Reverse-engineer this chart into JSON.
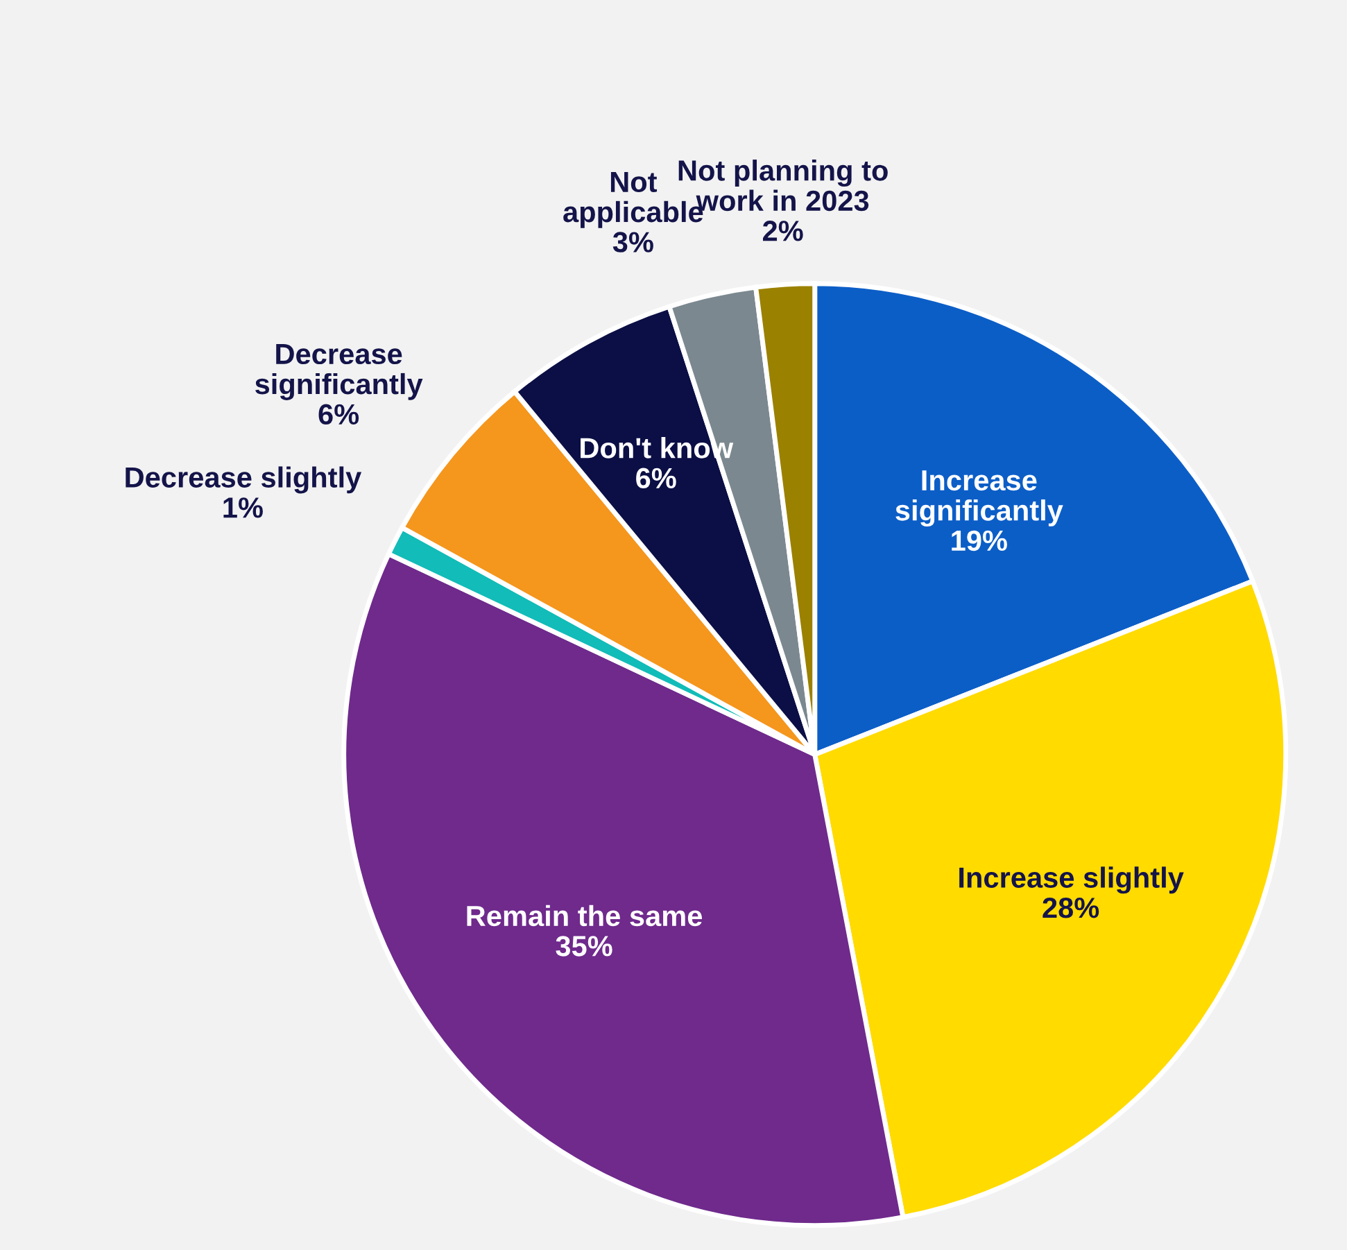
{
  "chart_data": {
    "type": "pie",
    "categories": [
      "Increase\nsignificantly",
      "Increase slightly",
      "Remain the same",
      "Decrease slightly",
      "Decrease\nsignificantly",
      "Don't know",
      "Not\napplicable",
      "Not planning to\nwork in 2023"
    ],
    "values": [
      19,
      28,
      35,
      1,
      6,
      6,
      3,
      2
    ],
    "colors": [
      "#0c5ec7",
      "#ffdb00",
      "#6f2a8c",
      "#12bcb8",
      "#f5961d",
      "#0b0f45",
      "#7b8890",
      "#9b8100"
    ],
    "value_labels": [
      "19%",
      "28%",
      "35%",
      "1%",
      "6%",
      "6%",
      "3%",
      "2%"
    ],
    "legend": false
  }
}
